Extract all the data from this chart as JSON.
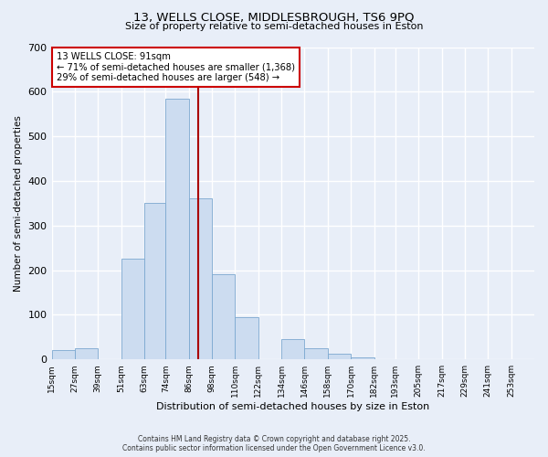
{
  "title_line1": "13, WELLS CLOSE, MIDDLESBROUGH, TS6 9PQ",
  "title_line2": "Size of property relative to semi-detached houses in Eston",
  "xlabel": "Distribution of semi-detached houses by size in Eston",
  "ylabel": "Number of semi-detached properties",
  "bin_labels": [
    "15sqm",
    "27sqm",
    "39sqm",
    "51sqm",
    "63sqm",
    "74sqm",
    "86sqm",
    "98sqm",
    "110sqm",
    "122sqm",
    "134sqm",
    "146sqm",
    "158sqm",
    "170sqm",
    "182sqm",
    "193sqm",
    "205sqm",
    "217sqm",
    "229sqm",
    "241sqm",
    "253sqm"
  ],
  "bin_edges": [
    15,
    27,
    39,
    51,
    63,
    74,
    86,
    98,
    110,
    122,
    134,
    146,
    158,
    170,
    182,
    193,
    205,
    217,
    229,
    241,
    253
  ],
  "bar_heights": [
    20,
    25,
    0,
    225,
    350,
    585,
    360,
    190,
    95,
    0,
    45,
    25,
    12,
    5,
    0,
    0,
    0,
    0,
    0,
    0
  ],
  "bar_color": "#ccdcf0",
  "bar_edge_color": "#7ca8d0",
  "property_value": 91,
  "vline_color": "#aa0000",
  "annotation_text": "13 WELLS CLOSE: 91sqm\n← 71% of semi-detached houses are smaller (1,368)\n29% of semi-detached houses are larger (548) →",
  "annotation_box_color": "#ffffff",
  "annotation_box_edge": "#cc0000",
  "ylim": [
    0,
    700
  ],
  "yticks": [
    0,
    100,
    200,
    300,
    400,
    500,
    600,
    700
  ],
  "background_color": "#e8eef8",
  "plot_bg_color": "#e8eef8",
  "grid_color": "#ffffff",
  "footer_line1": "Contains HM Land Registry data © Crown copyright and database right 2025.",
  "footer_line2": "Contains public sector information licensed under the Open Government Licence v3.0."
}
